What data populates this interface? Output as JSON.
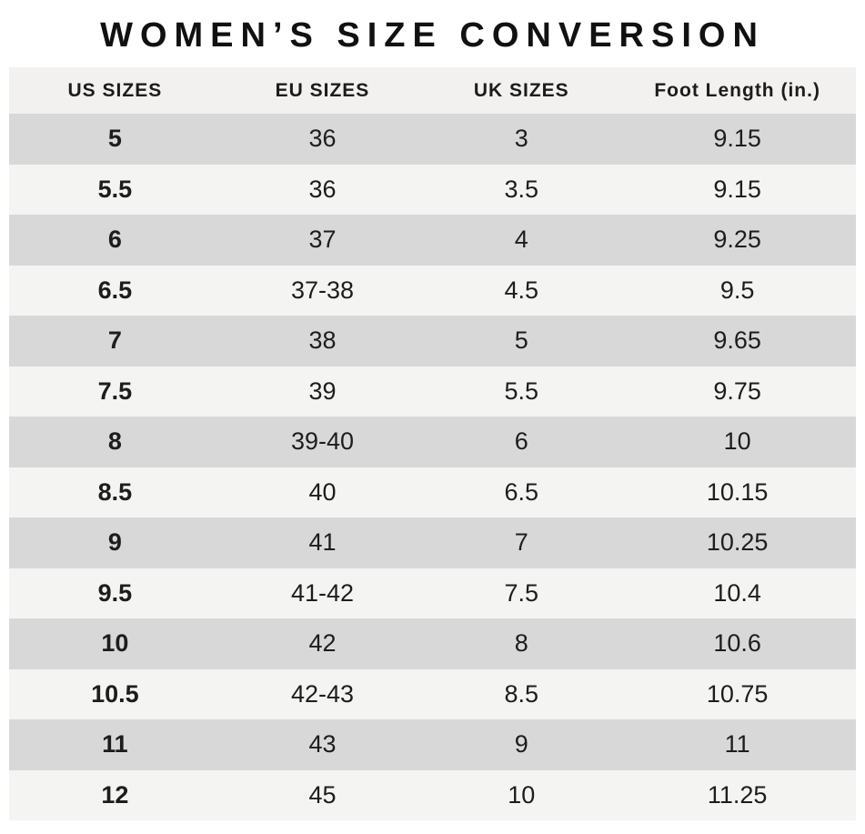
{
  "title": "WOMEN’S SIZE CONVERSION",
  "chart_data": {
    "type": "table",
    "title": "WOMEN’S SIZE CONVERSION",
    "columns": [
      "US SIZES",
      "EU SIZES",
      "UK SIZES",
      "Foot Length (in.)"
    ],
    "rows": [
      [
        "5",
        "36",
        "3",
        "9.15"
      ],
      [
        "5.5",
        "36",
        "3.5",
        "9.15"
      ],
      [
        "6",
        "37",
        "4",
        "9.25"
      ],
      [
        "6.5",
        "37-38",
        "4.5",
        "9.5"
      ],
      [
        "7",
        "38",
        "5",
        "9.65"
      ],
      [
        "7.5",
        "39",
        "5.5",
        "9.75"
      ],
      [
        "8",
        "39-40",
        "6",
        "10"
      ],
      [
        "8.5",
        "40",
        "6.5",
        "10.15"
      ],
      [
        "9",
        "41",
        "7",
        "10.25"
      ],
      [
        "9.5",
        "41-42",
        "7.5",
        "10.4"
      ],
      [
        "10",
        "42",
        "8",
        "10.6"
      ],
      [
        "10.5",
        "42-43",
        "8.5",
        "10.75"
      ],
      [
        "11",
        "43",
        "9",
        "11"
      ],
      [
        "12",
        "45",
        "10",
        "11.25"
      ]
    ]
  },
  "colors": {
    "header_bg": "#f2f1ef",
    "row_dark": "#d9d8d8",
    "row_light": "#f4f4f3",
    "text": "#1c1c1c",
    "page_bg": "#ffffff"
  }
}
